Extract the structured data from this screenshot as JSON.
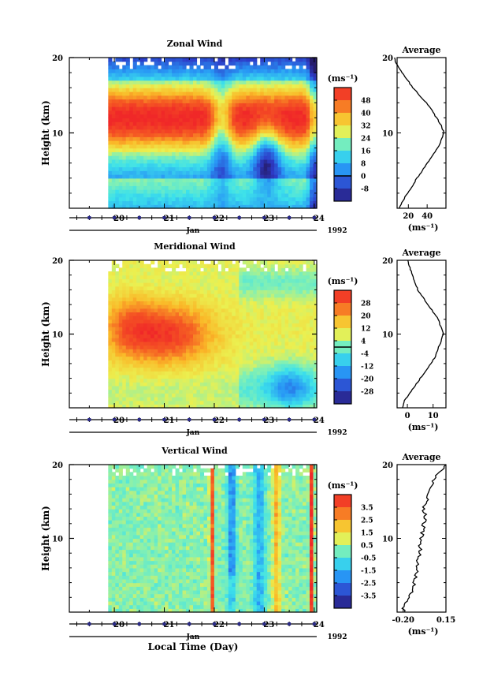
{
  "figure": {
    "xlabel": "Local Time (Day)"
  },
  "chart_data": [
    {
      "type": "heatmap",
      "title": "Zonal Wind",
      "ylabel": "Height (km)",
      "yticks": [
        "20",
        "10"
      ],
      "xticks": [
        "20",
        "21",
        "22",
        "23",
        "24"
      ],
      "month": "Jan",
      "year": "1992",
      "colorbar": {
        "unit": "(ms⁻¹)",
        "labels": [
          "48",
          "40",
          "32",
          "24",
          "16",
          "8",
          "0",
          "-8"
        ],
        "range": [
          -12,
          52
        ],
        "zero_line": true
      },
      "profile": {
        "title": "Average",
        "xticks": [
          "20",
          "40"
        ],
        "xrange": [
          8,
          60
        ],
        "unit": "(ms⁻¹)",
        "heights": [
          0,
          1,
          2,
          3,
          4,
          5,
          6,
          7,
          8,
          9,
          10,
          11,
          12,
          13,
          14,
          15,
          16,
          17,
          18,
          19,
          20
        ],
        "values": [
          10,
          14,
          19,
          25,
          29,
          35,
          40,
          46,
          51,
          55,
          58,
          55,
          50,
          45,
          39,
          32,
          25,
          19,
          13,
          8,
          5
        ]
      }
    },
    {
      "type": "heatmap",
      "title": "Meridional Wind",
      "ylabel": "Height (km)",
      "yticks": [
        "20",
        "10"
      ],
      "xticks": [
        "20",
        "21",
        "22",
        "23",
        "24"
      ],
      "month": "Jan",
      "year": "1992",
      "colorbar": {
        "unit": "(ms⁻¹)",
        "labels": [
          "28",
          "20",
          "12",
          "4",
          "-4",
          "-12",
          "-20",
          "-28"
        ],
        "range": [
          -32,
          32
        ],
        "zero_line": true
      },
      "profile": {
        "title": "Average",
        "xticks": [
          "0",
          "10"
        ],
        "xrange": [
          -4,
          15
        ],
        "unit": "(ms⁻¹)",
        "heights": [
          0,
          1,
          2,
          3,
          4,
          5,
          6,
          7,
          8,
          9,
          10,
          11,
          12,
          13,
          14,
          15,
          16,
          17,
          18,
          19,
          20
        ],
        "values": [
          -2,
          -1,
          1,
          3,
          5,
          7,
          9,
          11,
          12,
          13,
          14,
          13,
          12,
          10,
          8,
          6,
          4,
          3,
          2,
          1,
          0
        ]
      }
    },
    {
      "type": "heatmap",
      "title": "Vertical Wind",
      "ylabel": "Height (km)",
      "yticks": [
        "20",
        "10"
      ],
      "xticks": [
        "20",
        "21",
        "22",
        "23",
        "24"
      ],
      "month": "Jan",
      "year": "1992",
      "colorbar": {
        "unit": "(ms⁻¹)",
        "labels": [
          "3.5",
          "2.5",
          "1.5",
          "0.5",
          "-0.5",
          "-1.5",
          "-2.5",
          "-3.5"
        ],
        "range": [
          -4,
          4
        ],
        "zero_line": false
      },
      "profile": {
        "title": "Average",
        "xticks": [
          "-0.20",
          "0.15"
        ],
        "xrange": [
          -0.25,
          0.15
        ],
        "unit": "(ms⁻¹)",
        "heights": [
          0,
          1,
          2,
          3,
          4,
          5,
          6,
          7,
          8,
          9,
          10,
          11,
          12,
          13,
          14,
          15,
          16,
          17,
          18,
          19,
          20
        ],
        "values": [
          -0.2,
          -0.19,
          -0.16,
          -0.12,
          -0.11,
          -0.1,
          -0.08,
          -0.08,
          -0.06,
          -0.06,
          -0.05,
          -0.04,
          -0.03,
          -0.02,
          -0.03,
          -0.01,
          0.0,
          0.02,
          0.05,
          0.1,
          0.15
        ]
      }
    }
  ]
}
